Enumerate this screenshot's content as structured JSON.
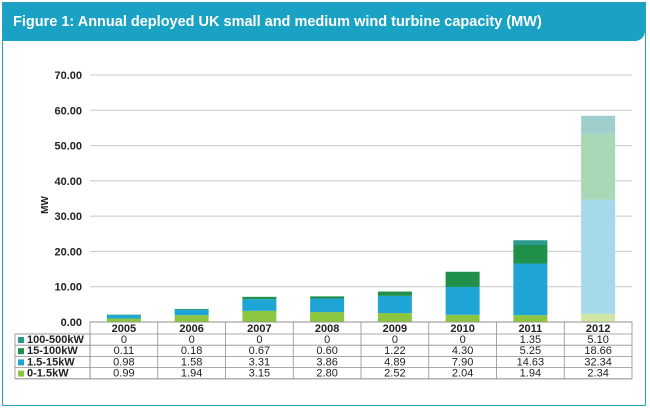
{
  "figure": {
    "title": "Figure 1: Annual deployed UK small and medium wind turbine capacity (MW)"
  },
  "chart_data": {
    "type": "bar",
    "stacked": true,
    "title": "Figure 1: Annual deployed UK small and medium wind turbine capacity (MW)",
    "xlabel": "",
    "ylabel": "MW",
    "ylim": [
      0,
      70
    ],
    "yticks": [
      "0.00",
      "10.00",
      "20.00",
      "30.00",
      "40.00",
      "50.00",
      "60.00",
      "70.00"
    ],
    "categories": [
      "2005",
      "2006",
      "2007",
      "2008",
      "2009",
      "2010",
      "2011",
      "2012"
    ],
    "series": [
      {
        "name": "0-1.5kW",
        "color": "#8cc63f",
        "values": [
          0.99,
          1.94,
          3.15,
          2.8,
          2.52,
          2.04,
          1.94,
          2.34
        ],
        "labels": [
          "0.99",
          "1.94",
          "3.15",
          "2.80",
          "2.52",
          "2.04",
          "1.94",
          "2.34"
        ]
      },
      {
        "name": "1.5-15kW",
        "color": "#1ea5d6",
        "values": [
          0.98,
          1.58,
          3.31,
          3.86,
          4.89,
          7.9,
          14.63,
          32.34
        ],
        "labels": [
          "0.98",
          "1.58",
          "3.31",
          "3.86",
          "4.89",
          "7.90",
          "14.63",
          "32.34"
        ]
      },
      {
        "name": "15-100kW",
        "color": "#1f8f4a",
        "values": [
          0.11,
          0.18,
          0.67,
          0.6,
          1.22,
          4.3,
          5.25,
          18.66
        ],
        "labels": [
          "0.11",
          "0.18",
          "0.67",
          "0.60",
          "1.22",
          "4.30",
          "5.25",
          "18.66"
        ]
      },
      {
        "name": "100-500kW",
        "color": "#2a9a8e",
        "values": [
          0,
          0,
          0,
          0,
          0,
          0,
          1.35,
          5.1
        ],
        "labels": [
          "0",
          "0",
          "0",
          "0",
          "0",
          "0",
          "1.35",
          "5.10"
        ]
      }
    ],
    "table_row_order": [
      "100-500kW",
      "15-100kW",
      "1.5-15kW",
      "0-1.5kW"
    ],
    "last_category_style": "faded",
    "faded_colors": {
      "0-1.5kW": "#cfe6a4",
      "1.5-15kW": "#a6d9ea",
      "15-100kW": "#a8d8b5",
      "100-500kW": "#9fcfcc"
    },
    "grid": true,
    "legend": "data-table-below-chart"
  }
}
